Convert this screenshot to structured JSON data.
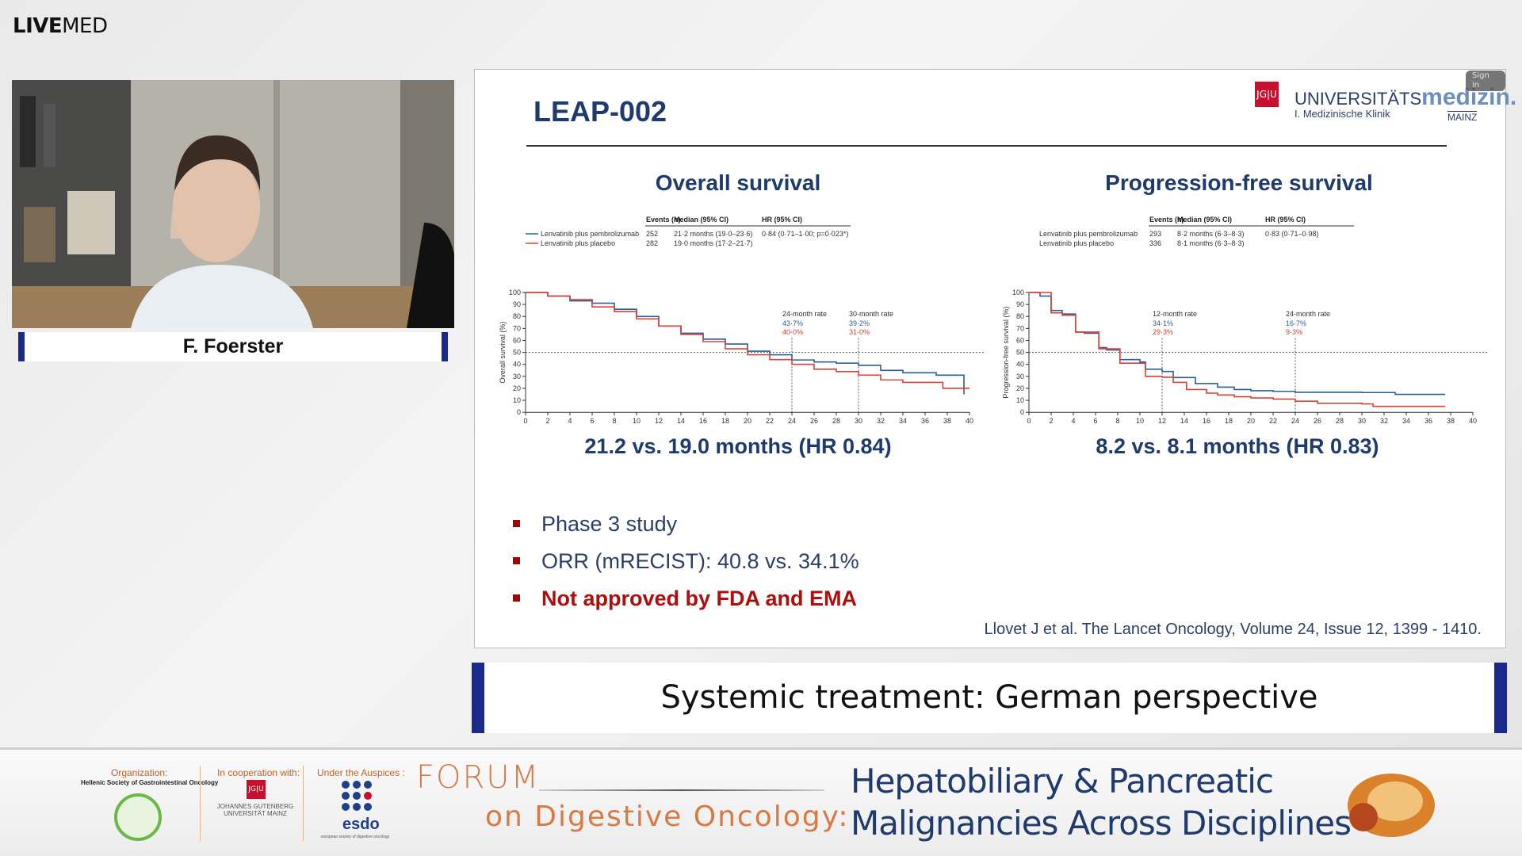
{
  "app": {
    "logo_bold": "LIVE",
    "logo_light": "MED"
  },
  "speaker": {
    "name": "F. Foerster"
  },
  "slide": {
    "title": "LEAP-002",
    "institution": {
      "mark": "JG|U",
      "name_light": "UNIVERSITÄTS",
      "name_bold": "medizin.",
      "dept": "I. Medizinische Klinik",
      "city": "MAINZ",
      "sign_in": "Sign in"
    },
    "os_summary": "21.2 vs. 19.0 months (HR 0.84)",
    "pfs_summary": "8.2 vs. 8.1 months (HR 0.83)",
    "bullets": [
      "Phase 3 study",
      "ORR (mRECIST): 40.8 vs. 34.1%",
      "Not approved by FDA and EMA"
    ],
    "citation": "Llovet J et al. The Lancet Oncology, Volume 24, Issue 12, 1399 - 1410."
  },
  "chart_data": [
    {
      "type": "line",
      "title": "Overall survival",
      "ylabel": "Overall survival (%)",
      "xlim": [
        0,
        40
      ],
      "ylim": [
        0,
        100
      ],
      "xticks": [
        0,
        2,
        4,
        6,
        8,
        10,
        12,
        14,
        16,
        18,
        20,
        22,
        24,
        26,
        28,
        30,
        32,
        34,
        36,
        38,
        40
      ],
      "yticks": [
        0,
        10,
        20,
        30,
        40,
        50,
        60,
        70,
        80,
        90,
        100
      ],
      "table_headers": [
        "Events (n)",
        "Median (95% CI)",
        "HR (95% CI)"
      ],
      "series": [
        {
          "name": "Lenvatinib plus pembrolizumab",
          "color": "#2b5d9c",
          "events": "252",
          "median": "21·2 months (19·0–23·6)",
          "hr": "0·84 (0·71–1·00; p=0·023*)",
          "x": [
            0,
            2,
            4,
            6,
            8,
            10,
            12,
            14,
            16,
            18,
            20,
            22,
            24,
            26,
            28,
            30,
            32,
            34,
            36,
            37,
            39.5,
            39.5
          ],
          "y": [
            100,
            97,
            93,
            91,
            86,
            80,
            72,
            66,
            61,
            57,
            51,
            48,
            43.7,
            42,
            41,
            39.2,
            35,
            33,
            33,
            31,
            31,
            15
          ]
        },
        {
          "name": "Lenvatinib plus placebo",
          "color": "#d9403a",
          "events": "282",
          "median": "19·0 months (17·2–21·7)",
          "hr": "",
          "x": [
            0,
            2,
            4,
            6,
            8,
            10,
            12,
            14,
            16,
            18,
            20,
            22,
            24,
            26,
            28,
            30,
            32,
            34,
            36,
            37.6,
            40
          ],
          "y": [
            100,
            97,
            94,
            88,
            84,
            78,
            72,
            65,
            59,
            53,
            48,
            44,
            40,
            36,
            34,
            31,
            27,
            25,
            25,
            20,
            20
          ]
        }
      ],
      "annotations": [
        {
          "x": 24,
          "label": "24-month rate",
          "values": [
            "43·7%",
            "40·0%"
          ]
        },
        {
          "x": 30,
          "label": "30-month rate",
          "values": [
            "39·2%",
            "31·0%"
          ]
        }
      ],
      "reference_line": 50
    },
    {
      "type": "line",
      "title": "Progression-free survival",
      "ylabel": "Progression-free survival (%)",
      "xlim": [
        0,
        40
      ],
      "ylim": [
        0,
        100
      ],
      "xticks": [
        0,
        2,
        4,
        6,
        8,
        10,
        12,
        14,
        16,
        18,
        20,
        22,
        24,
        26,
        28,
        30,
        32,
        34,
        36,
        38,
        40
      ],
      "yticks": [
        0,
        10,
        20,
        30,
        40,
        50,
        60,
        70,
        80,
        90,
        100
      ],
      "table_headers": [
        "Events (n)",
        "Median (95% CI)",
        "HR (95% CI)"
      ],
      "series": [
        {
          "name": "Lenvatinib plus pembrolizumab",
          "color": "#2b5d9c",
          "events": "293",
          "median": "8·2 months (6·3–8·3)",
          "hr": "0·83 (0·71–0·98)",
          "x": [
            0,
            1,
            2,
            3,
            4.2,
            5,
            6.3,
            7,
            8.2,
            10,
            10.5,
            12,
            13,
            15,
            17,
            18.5,
            20,
            22,
            24,
            30,
            33,
            37.5
          ],
          "y": [
            100,
            97,
            85,
            82,
            67,
            66,
            54,
            52,
            44,
            42,
            36,
            34.1,
            29,
            24,
            21,
            19,
            18,
            17.5,
            16.7,
            16.5,
            15,
            15
          ]
        },
        {
          "name": "Lenvatinib plus placebo",
          "color": "#d9403a",
          "events": "336",
          "median": "8·1 months (6·3–8·3)",
          "hr": "",
          "x": [
            0,
            2,
            3,
            4.2,
            6.3,
            8.2,
            10.5,
            12,
            13,
            14.2,
            16,
            17,
            18.5,
            20,
            22,
            24,
            26,
            30,
            31,
            37.5
          ],
          "y": [
            100,
            83,
            81,
            67,
            53,
            41,
            30,
            29.3,
            25,
            19,
            16,
            14.5,
            13,
            12,
            11,
            9.3,
            7.5,
            7,
            5,
            5
          ]
        }
      ],
      "annotations": [
        {
          "x": 12,
          "label": "12-month rate",
          "values": [
            "34·1%",
            "29·3%"
          ]
        },
        {
          "x": 24,
          "label": "24-month rate",
          "values": [
            "16·7%",
            "9·3%"
          ]
        }
      ],
      "reference_line": 50
    }
  ],
  "session_title": "Systemic treatment: German perspective",
  "footer": {
    "organization_label": "Organization:",
    "organization_name": "Hellenic Society of Gastrointestinal Oncology",
    "cooperation_label": "In cooperation with:",
    "cooperation_name": "JOHANNES GUTENBERG UNIVERSITÄT MAINZ",
    "cooperation_mark": "JG|U",
    "auspices_label": "Under the Auspices :",
    "auspices_name": "esdo",
    "auspices_sub": "european society of digestive oncology",
    "forum_line1": "FORUM",
    "forum_line2": "on Digestive Oncology:",
    "theme_line1": "Hepatobiliary & Pancreatic",
    "theme_line2": "Malignancies Across Disciplines"
  }
}
